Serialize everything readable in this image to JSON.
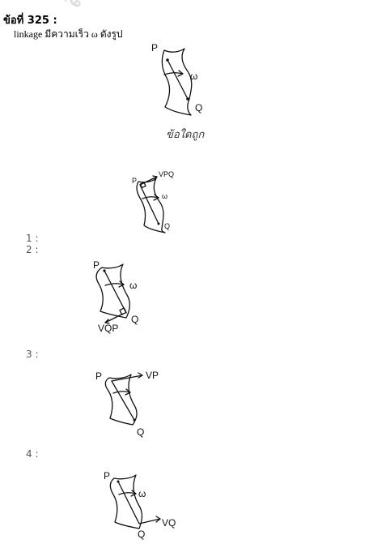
{
  "question": {
    "title": "ข้อที่ 325 :",
    "text": "linkage มีความเร็ว ω ดังรูป",
    "handwritten_note": "ข้อใดถูก"
  },
  "watermark": "สภาวิศวกร",
  "figure_labels": {
    "p": "P",
    "q": "Q",
    "omega": "ω",
    "vpq": "VPQ",
    "vqp": "VQP",
    "vp": "VP",
    "vq": "VQ"
  },
  "choices": [
    {
      "number": "1 :"
    },
    {
      "number": "2 :"
    },
    {
      "number": "3 :"
    },
    {
      "number": "4 :"
    }
  ]
}
